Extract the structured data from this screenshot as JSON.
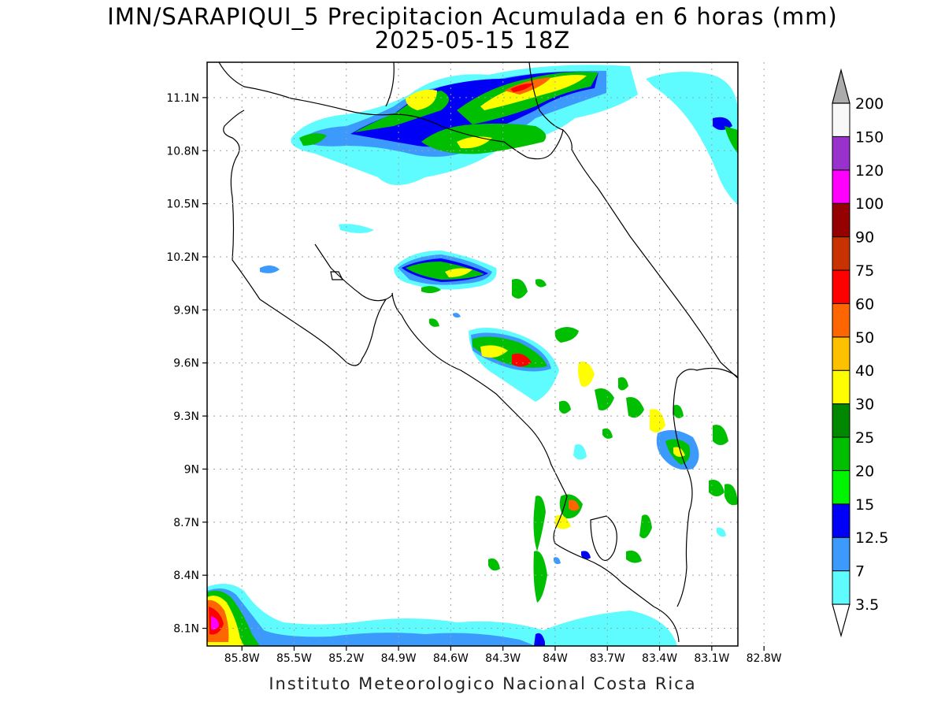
{
  "title_line1": "IMN/SARAPIQUI_5 Precipitacion Acumulada en 6 horas (mm)",
  "title_line2": "2025-05-15 18Z",
  "footer": "Instituto Meteorologico Nacional Costa Rica",
  "map": {
    "lat_labels": [
      "11.1N",
      "10.8N",
      "10.5N",
      "10.2N",
      "9.9N",
      "9.6N",
      "9.3N",
      "9N",
      "8.7N",
      "8.4N",
      "8.1N"
    ],
    "lon_labels": [
      "85.8W",
      "85.5W",
      "85.2W",
      "84.9W",
      "84.6W",
      "84.3W",
      "84W",
      "83.7W",
      "83.4W",
      "83.1W",
      "82.8W"
    ],
    "lat_range": [
      8.0,
      11.3
    ],
    "lon_range": [
      -86.0,
      -82.95
    ]
  },
  "legend": {
    "levels": [
      "3.5",
      "7",
      "12.5",
      "15",
      "20",
      "25",
      "30",
      "40",
      "50",
      "60",
      "75",
      "90",
      "100",
      "120",
      "150",
      "200"
    ],
    "colors": [
      "#5ffcff",
      "#3c9afc",
      "#0000f6",
      "#00f400",
      "#00bf00",
      "#008800",
      "#fefe00",
      "#fdc100",
      "#fd6600",
      "#fe0000",
      "#c83200",
      "#950000",
      "#ff00ff",
      "#9932cc",
      "#f8f8f8",
      "#ababab"
    ],
    "below_color": "#ffffff"
  }
}
